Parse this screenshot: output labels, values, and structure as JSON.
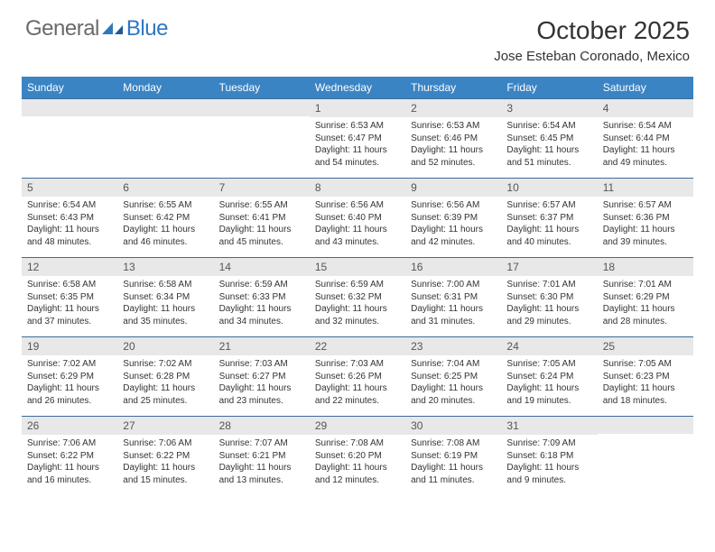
{
  "header": {
    "logo_general": "General",
    "logo_blue": "Blue",
    "month_title": "October 2025",
    "location": "Jose Esteban Coronado, Mexico"
  },
  "colors": {
    "header_bg": "#3b84c4",
    "header_text": "#ffffff",
    "daynum_bg": "#e8e8e8",
    "border": "#3b6d9a",
    "logo_gray": "#6a6a6a",
    "logo_blue": "#2d77c2"
  },
  "day_names": [
    "Sunday",
    "Monday",
    "Tuesday",
    "Wednesday",
    "Thursday",
    "Friday",
    "Saturday"
  ],
  "weeks": [
    [
      null,
      null,
      null,
      {
        "n": "1",
        "sr": "Sunrise: 6:53 AM",
        "ss": "Sunset: 6:47 PM",
        "dl1": "Daylight: 11 hours",
        "dl2": "and 54 minutes."
      },
      {
        "n": "2",
        "sr": "Sunrise: 6:53 AM",
        "ss": "Sunset: 6:46 PM",
        "dl1": "Daylight: 11 hours",
        "dl2": "and 52 minutes."
      },
      {
        "n": "3",
        "sr": "Sunrise: 6:54 AM",
        "ss": "Sunset: 6:45 PM",
        "dl1": "Daylight: 11 hours",
        "dl2": "and 51 minutes."
      },
      {
        "n": "4",
        "sr": "Sunrise: 6:54 AM",
        "ss": "Sunset: 6:44 PM",
        "dl1": "Daylight: 11 hours",
        "dl2": "and 49 minutes."
      }
    ],
    [
      {
        "n": "5",
        "sr": "Sunrise: 6:54 AM",
        "ss": "Sunset: 6:43 PM",
        "dl1": "Daylight: 11 hours",
        "dl2": "and 48 minutes."
      },
      {
        "n": "6",
        "sr": "Sunrise: 6:55 AM",
        "ss": "Sunset: 6:42 PM",
        "dl1": "Daylight: 11 hours",
        "dl2": "and 46 minutes."
      },
      {
        "n": "7",
        "sr": "Sunrise: 6:55 AM",
        "ss": "Sunset: 6:41 PM",
        "dl1": "Daylight: 11 hours",
        "dl2": "and 45 minutes."
      },
      {
        "n": "8",
        "sr": "Sunrise: 6:56 AM",
        "ss": "Sunset: 6:40 PM",
        "dl1": "Daylight: 11 hours",
        "dl2": "and 43 minutes."
      },
      {
        "n": "9",
        "sr": "Sunrise: 6:56 AM",
        "ss": "Sunset: 6:39 PM",
        "dl1": "Daylight: 11 hours",
        "dl2": "and 42 minutes."
      },
      {
        "n": "10",
        "sr": "Sunrise: 6:57 AM",
        "ss": "Sunset: 6:37 PM",
        "dl1": "Daylight: 11 hours",
        "dl2": "and 40 minutes."
      },
      {
        "n": "11",
        "sr": "Sunrise: 6:57 AM",
        "ss": "Sunset: 6:36 PM",
        "dl1": "Daylight: 11 hours",
        "dl2": "and 39 minutes."
      }
    ],
    [
      {
        "n": "12",
        "sr": "Sunrise: 6:58 AM",
        "ss": "Sunset: 6:35 PM",
        "dl1": "Daylight: 11 hours",
        "dl2": "and 37 minutes."
      },
      {
        "n": "13",
        "sr": "Sunrise: 6:58 AM",
        "ss": "Sunset: 6:34 PM",
        "dl1": "Daylight: 11 hours",
        "dl2": "and 35 minutes."
      },
      {
        "n": "14",
        "sr": "Sunrise: 6:59 AM",
        "ss": "Sunset: 6:33 PM",
        "dl1": "Daylight: 11 hours",
        "dl2": "and 34 minutes."
      },
      {
        "n": "15",
        "sr": "Sunrise: 6:59 AM",
        "ss": "Sunset: 6:32 PM",
        "dl1": "Daylight: 11 hours",
        "dl2": "and 32 minutes."
      },
      {
        "n": "16",
        "sr": "Sunrise: 7:00 AM",
        "ss": "Sunset: 6:31 PM",
        "dl1": "Daylight: 11 hours",
        "dl2": "and 31 minutes."
      },
      {
        "n": "17",
        "sr": "Sunrise: 7:01 AM",
        "ss": "Sunset: 6:30 PM",
        "dl1": "Daylight: 11 hours",
        "dl2": "and 29 minutes."
      },
      {
        "n": "18",
        "sr": "Sunrise: 7:01 AM",
        "ss": "Sunset: 6:29 PM",
        "dl1": "Daylight: 11 hours",
        "dl2": "and 28 minutes."
      }
    ],
    [
      {
        "n": "19",
        "sr": "Sunrise: 7:02 AM",
        "ss": "Sunset: 6:29 PM",
        "dl1": "Daylight: 11 hours",
        "dl2": "and 26 minutes."
      },
      {
        "n": "20",
        "sr": "Sunrise: 7:02 AM",
        "ss": "Sunset: 6:28 PM",
        "dl1": "Daylight: 11 hours",
        "dl2": "and 25 minutes."
      },
      {
        "n": "21",
        "sr": "Sunrise: 7:03 AM",
        "ss": "Sunset: 6:27 PM",
        "dl1": "Daylight: 11 hours",
        "dl2": "and 23 minutes."
      },
      {
        "n": "22",
        "sr": "Sunrise: 7:03 AM",
        "ss": "Sunset: 6:26 PM",
        "dl1": "Daylight: 11 hours",
        "dl2": "and 22 minutes."
      },
      {
        "n": "23",
        "sr": "Sunrise: 7:04 AM",
        "ss": "Sunset: 6:25 PM",
        "dl1": "Daylight: 11 hours",
        "dl2": "and 20 minutes."
      },
      {
        "n": "24",
        "sr": "Sunrise: 7:05 AM",
        "ss": "Sunset: 6:24 PM",
        "dl1": "Daylight: 11 hours",
        "dl2": "and 19 minutes."
      },
      {
        "n": "25",
        "sr": "Sunrise: 7:05 AM",
        "ss": "Sunset: 6:23 PM",
        "dl1": "Daylight: 11 hours",
        "dl2": "and 18 minutes."
      }
    ],
    [
      {
        "n": "26",
        "sr": "Sunrise: 7:06 AM",
        "ss": "Sunset: 6:22 PM",
        "dl1": "Daylight: 11 hours",
        "dl2": "and 16 minutes."
      },
      {
        "n": "27",
        "sr": "Sunrise: 7:06 AM",
        "ss": "Sunset: 6:22 PM",
        "dl1": "Daylight: 11 hours",
        "dl2": "and 15 minutes."
      },
      {
        "n": "28",
        "sr": "Sunrise: 7:07 AM",
        "ss": "Sunset: 6:21 PM",
        "dl1": "Daylight: 11 hours",
        "dl2": "and 13 minutes."
      },
      {
        "n": "29",
        "sr": "Sunrise: 7:08 AM",
        "ss": "Sunset: 6:20 PM",
        "dl1": "Daylight: 11 hours",
        "dl2": "and 12 minutes."
      },
      {
        "n": "30",
        "sr": "Sunrise: 7:08 AM",
        "ss": "Sunset: 6:19 PM",
        "dl1": "Daylight: 11 hours",
        "dl2": "and 11 minutes."
      },
      {
        "n": "31",
        "sr": "Sunrise: 7:09 AM",
        "ss": "Sunset: 6:18 PM",
        "dl1": "Daylight: 11 hours",
        "dl2": "and 9 minutes."
      },
      null
    ]
  ]
}
